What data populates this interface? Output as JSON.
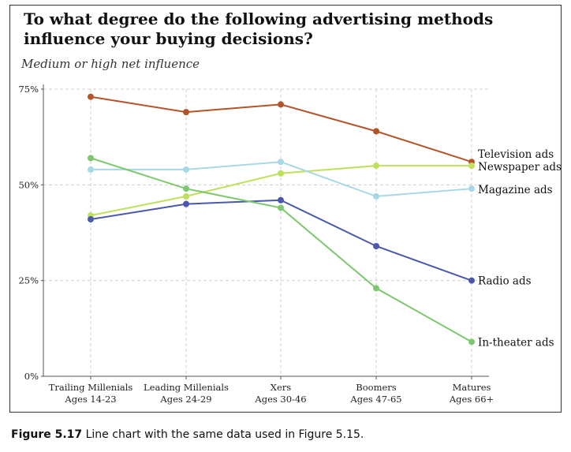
{
  "title": "To what degree do the following advertising methods\n influence your buying decisions?",
  "subtitle": "Medium or high net influence",
  "caption": {
    "figure_number": "Figure 5.17",
    "text": " Line chart with the same data used in Figure 5.15."
  },
  "chart_data": {
    "type": "line",
    "title": "To what degree do the following advertising methods influence your buying decisions?",
    "subtitle": "Medium or high net influence",
    "xlabel": "",
    "ylabel": "",
    "categories": [
      [
        "Trailing Millenials",
        "Ages 14-23"
      ],
      [
        "Leading Millenials",
        "Ages 24-29"
      ],
      [
        "Xers",
        "Ages 30-46"
      ],
      [
        "Boomers",
        "Ages 47-65"
      ],
      [
        "Matures",
        "Ages 66+"
      ]
    ],
    "ylim": [
      0,
      75
    ],
    "yticks": [
      0,
      25,
      50,
      75
    ],
    "ytick_labels": [
      "0%",
      "25%",
      "50%",
      "75%"
    ],
    "grid": true,
    "legend": "direct labels at right end of lines",
    "series": [
      {
        "name": "Television ads",
        "color": "#b5532a",
        "values": [
          73,
          69,
          71,
          64,
          56
        ]
      },
      {
        "name": "Newspaper ads",
        "color": "#bfe05a",
        "values": [
          42,
          47,
          53,
          55,
          55
        ]
      },
      {
        "name": "Magazine ads",
        "color": "#a8d8e6",
        "values": [
          54,
          54,
          56,
          47,
          49
        ]
      },
      {
        "name": "Radio ads",
        "color": "#4a58ad",
        "values": [
          41,
          45,
          46,
          34,
          25
        ]
      },
      {
        "name": "In-theater ads",
        "color": "#7dc86e",
        "values": [
          57,
          49,
          44,
          23,
          9
        ]
      }
    ]
  }
}
